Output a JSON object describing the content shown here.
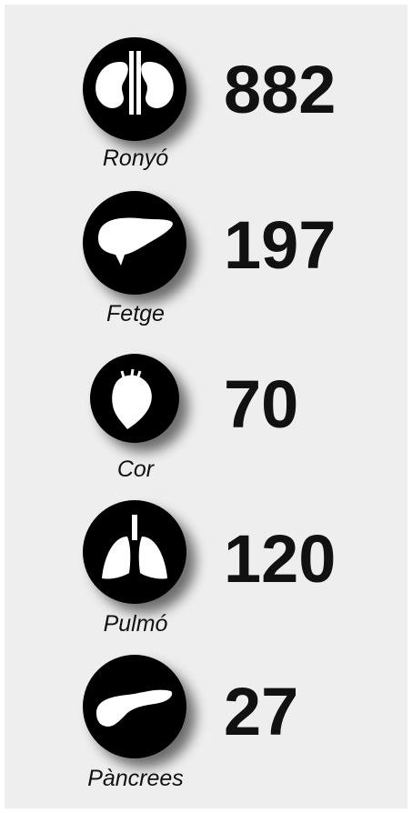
{
  "items": [
    {
      "label": "Ronyó",
      "value": 882
    },
    {
      "label": "Fetge",
      "value": 197
    },
    {
      "label": "Cor",
      "value": 70
    },
    {
      "label": "Pulmó",
      "value": 120
    },
    {
      "label": "Pàncrees",
      "value": 27
    }
  ]
}
